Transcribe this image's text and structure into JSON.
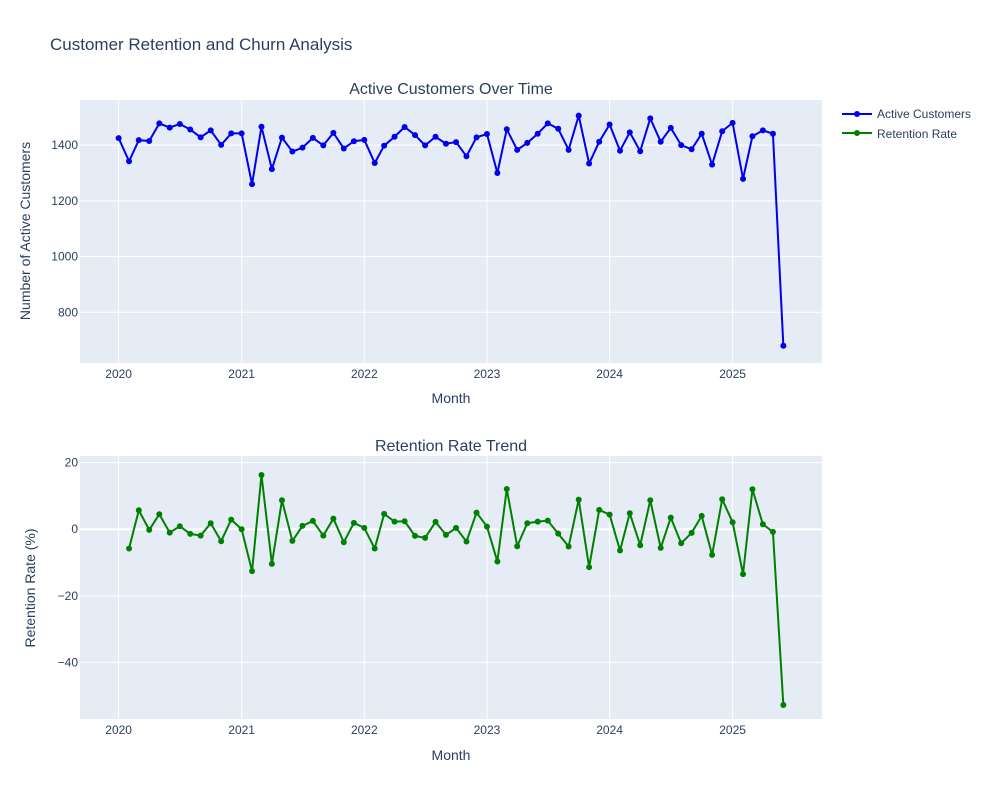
{
  "title": "Customer Retention and Churn Analysis",
  "colors": {
    "plot_bg": "#e5ecf6",
    "grid": "#ffffff",
    "text": "#2a3f5f",
    "active": "#0000ee",
    "retention": "#008000"
  },
  "legend": {
    "placement": "top-right",
    "items": [
      "Active Customers",
      "Retention Rate"
    ]
  },
  "chart_data": [
    {
      "type": "line",
      "title": "Active Customers Over Time",
      "xlabel": "Month",
      "ylabel": "Number of Active Customers",
      "xticks": [
        "2020",
        "2021",
        "2022",
        "2023",
        "2024",
        "2025"
      ],
      "yticks": [
        800,
        1000,
        1200,
        1400
      ],
      "xlim": [
        "2019-09-08",
        "2025-09-24"
      ],
      "ylim": [
        618,
        1562
      ],
      "grid": true,
      "series": [
        {
          "name": "Active Customers",
          "x": [
            "2020-01",
            "2020-02",
            "2020-03",
            "2020-04",
            "2020-05",
            "2020-06",
            "2020-07",
            "2020-08",
            "2020-09",
            "2020-10",
            "2020-11",
            "2020-12",
            "2021-01",
            "2021-02",
            "2021-03",
            "2021-04",
            "2021-05",
            "2021-06",
            "2021-07",
            "2021-08",
            "2021-09",
            "2021-10",
            "2021-11",
            "2021-12",
            "2022-01",
            "2022-02",
            "2022-03",
            "2022-04",
            "2022-05",
            "2022-06",
            "2022-07",
            "2022-08",
            "2022-09",
            "2022-10",
            "2022-11",
            "2022-12",
            "2023-01",
            "2023-02",
            "2023-03",
            "2023-04",
            "2023-05",
            "2023-06",
            "2023-07",
            "2023-08",
            "2023-09",
            "2023-10",
            "2023-11",
            "2023-12",
            "2024-01",
            "2024-02",
            "2024-03",
            "2024-04",
            "2024-05",
            "2024-06",
            "2024-07",
            "2024-08",
            "2024-09",
            "2024-10",
            "2024-11",
            "2024-12",
            "2025-01",
            "2025-02",
            "2025-03",
            "2025-04",
            "2025-05",
            "2025-06"
          ],
          "values": [
            1425,
            1342,
            1418,
            1415,
            1478,
            1463,
            1476,
            1456,
            1428,
            1453,
            1401,
            1442,
            1442,
            1260,
            1466,
            1314,
            1427,
            1377,
            1391,
            1426,
            1399,
            1444,
            1388,
            1414,
            1419,
            1336,
            1398,
            1430,
            1465,
            1436,
            1399,
            1430,
            1405,
            1411,
            1360,
            1428,
            1440,
            1300,
            1457,
            1383,
            1408,
            1441,
            1478,
            1459,
            1383,
            1506,
            1334,
            1412,
            1474,
            1380,
            1446,
            1378,
            1496,
            1412,
            1462,
            1400,
            1385,
            1441,
            1330,
            1450,
            1480,
            1279,
            1432,
            1453,
            1441,
            680
          ]
        }
      ]
    },
    {
      "type": "line",
      "title": "Retention Rate Trend",
      "xlabel": "Month",
      "ylabel": "Retention Rate (%)",
      "xticks": [
        "2020",
        "2021",
        "2022",
        "2023",
        "2024",
        "2025"
      ],
      "yticks": [
        -40,
        -20,
        0,
        20
      ],
      "xlim": [
        "2019-09-08",
        "2025-09-24"
      ],
      "ylim": [
        -57,
        22
      ],
      "grid": true,
      "series": [
        {
          "name": "Retention Rate",
          "x": [
            "2020-02",
            "2020-03",
            "2020-04",
            "2020-05",
            "2020-06",
            "2020-07",
            "2020-08",
            "2020-09",
            "2020-10",
            "2020-11",
            "2020-12",
            "2021-01",
            "2021-02",
            "2021-03",
            "2021-04",
            "2021-05",
            "2021-06",
            "2021-07",
            "2021-08",
            "2021-09",
            "2021-10",
            "2021-11",
            "2021-12",
            "2022-01",
            "2022-02",
            "2022-03",
            "2022-04",
            "2022-05",
            "2022-06",
            "2022-07",
            "2022-08",
            "2022-09",
            "2022-10",
            "2022-11",
            "2022-12",
            "2023-01",
            "2023-02",
            "2023-03",
            "2023-04",
            "2023-05",
            "2023-06",
            "2023-07",
            "2023-08",
            "2023-09",
            "2023-10",
            "2023-11",
            "2023-12",
            "2024-01",
            "2024-02",
            "2024-03",
            "2024-04",
            "2024-05",
            "2024-06",
            "2024-07",
            "2024-08",
            "2024-09",
            "2024-10",
            "2024-11",
            "2024-12",
            "2025-01",
            "2025-02",
            "2025-03",
            "2025-04",
            "2025-05",
            "2025-06"
          ],
          "values": [
            -5.8,
            5.7,
            -0.2,
            4.5,
            -1.0,
            0.9,
            -1.4,
            -1.9,
            1.8,
            -3.6,
            2.9,
            0.0,
            -12.6,
            16.3,
            -10.4,
            8.7,
            -3.5,
            1.0,
            2.5,
            -1.9,
            3.2,
            -3.9,
            1.9,
            0.4,
            -5.8,
            4.6,
            2.3,
            2.4,
            -2.0,
            -2.6,
            2.2,
            -1.7,
            0.4,
            -3.7,
            5.0,
            0.8,
            -9.7,
            12.1,
            -5.1,
            1.8,
            2.3,
            2.6,
            -1.3,
            -5.2,
            8.9,
            -11.4,
            5.8,
            4.4,
            -6.4,
            4.8,
            -4.8,
            8.7,
            -5.6,
            3.5,
            -4.2,
            -1.1,
            4.0,
            -7.7,
            9.0,
            2.1,
            -13.5,
            12.0,
            1.5,
            -0.8,
            -52.8
          ]
        }
      ]
    }
  ]
}
